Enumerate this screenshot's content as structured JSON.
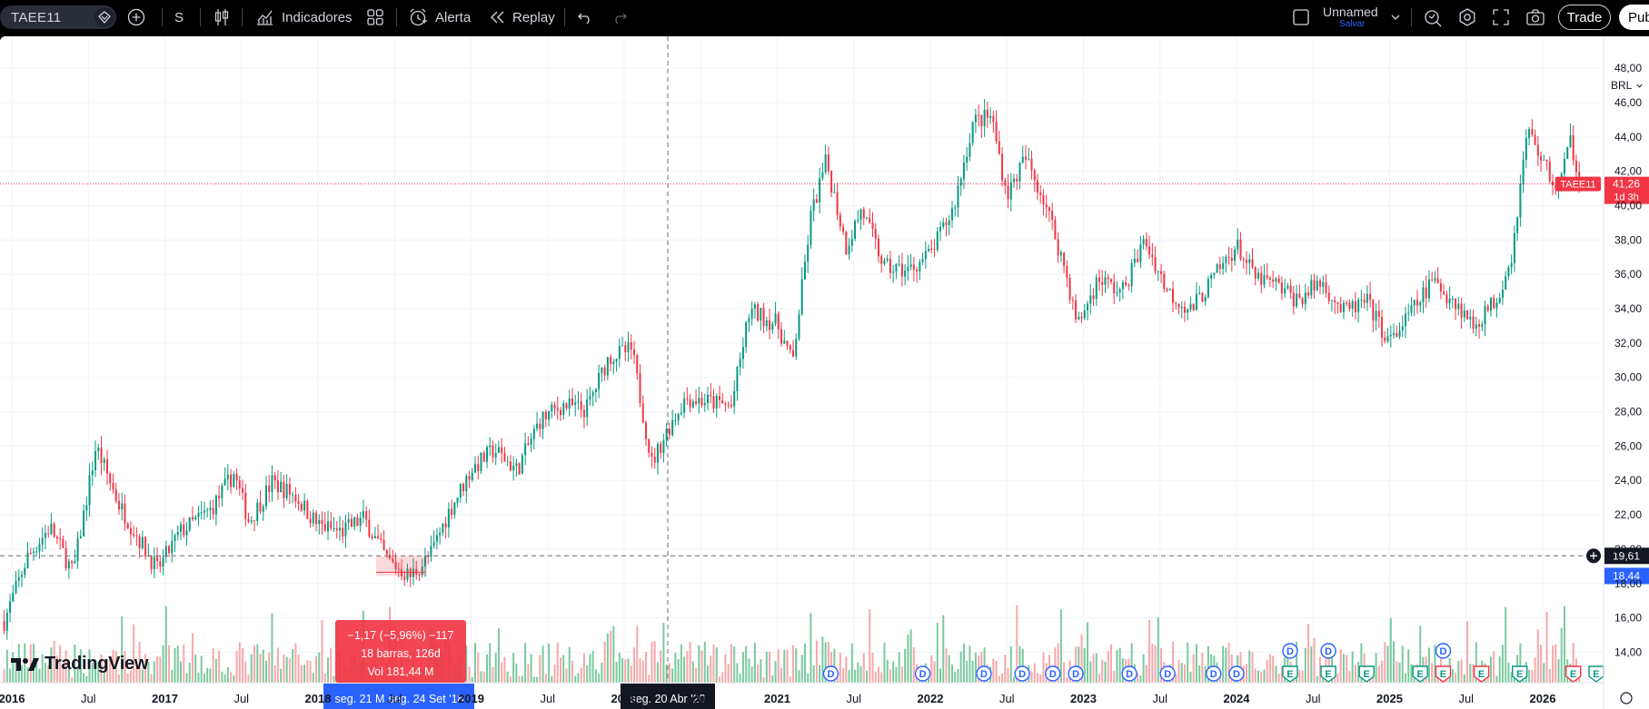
{
  "toolbar": {
    "symbol": "TAEE11",
    "interval": "S",
    "indicators_label": "Indicadores",
    "alert_label": "Alerta",
    "replay_label": "Replay",
    "layout_name": "Unnamed",
    "save_label": "Salvar",
    "trade_label": "Trade",
    "publish_label": "Pub"
  },
  "chart": {
    "currency": "BRL",
    "price_labels": [
      "48,00",
      "46,00",
      "44,00",
      "42,00",
      "40,00",
      "38,00",
      "36,00",
      "34,00",
      "32,00",
      "30,00",
      "28,00",
      "26,00",
      "24,00",
      "22,00",
      "20,00",
      "18,00",
      "16,00",
      "14,00"
    ],
    "time_labels": [
      "2016",
      "Jul",
      "2017",
      "Jul",
      "2018",
      "Jul",
      "2019",
      "Jul",
      "2020",
      "Jul",
      "2021",
      "Jul",
      "2022",
      "Jul",
      "2023",
      "Jul",
      "2024",
      "Jul",
      "2025",
      "Jul",
      "2026"
    ],
    "last_price": {
      "symbol": "TAEE11",
      "value": "41,26",
      "countdown": "1d 3h"
    },
    "crosshair_price": "19,61",
    "measure_price": "18,44",
    "crosshair_date": "seg. 20 Abr '20",
    "range_start_date": "seg. 21 M",
    "range_end_date": "seg. 24 Set '18",
    "measure": {
      "line1": "−1,17 (−5,96%) −117",
      "line2": "18 barras, 126d",
      "line3": "Vol 181,44 M"
    },
    "logo_text": "TradingView",
    "event_markers": [
      {
        "kind": "D",
        "row": "low",
        "date": "2021.35"
      },
      {
        "kind": "D",
        "row": "low",
        "date": "2021.95"
      },
      {
        "kind": "D",
        "row": "low",
        "date": "2022.35"
      },
      {
        "kind": "D",
        "row": "low",
        "date": "2022.6"
      },
      {
        "kind": "D",
        "row": "low",
        "date": "2022.8"
      },
      {
        "kind": "D",
        "row": "low",
        "date": "2022.95"
      },
      {
        "kind": "D",
        "row": "low",
        "date": "2023.3"
      },
      {
        "kind": "D",
        "row": "low",
        "date": "2023.55"
      },
      {
        "kind": "D",
        "row": "low",
        "date": "2023.85"
      },
      {
        "kind": "D",
        "row": "low",
        "date": "2024.0"
      },
      {
        "kind": "D",
        "row": "high",
        "date": "2024.35"
      },
      {
        "kind": "D",
        "row": "high",
        "date": "2024.6"
      },
      {
        "kind": "D",
        "row": "high",
        "date": "2025.35"
      },
      {
        "kind": "E",
        "row": "low",
        "date": "2024.35"
      },
      {
        "kind": "E",
        "row": "low",
        "date": "2024.6"
      },
      {
        "kind": "E",
        "row": "low",
        "date": "2024.85"
      },
      {
        "kind": "E",
        "row": "low",
        "date": "2025.2"
      },
      {
        "kind": "E",
        "row": "low",
        "date": "2025.35"
      },
      {
        "kind": "E",
        "row": "low",
        "date": "2025.6"
      },
      {
        "kind": "E",
        "row": "low",
        "date": "2025.85"
      },
      {
        "kind": "E",
        "row": "low",
        "date": "2026.2"
      },
      {
        "kind": "E",
        "row": "low",
        "date": "2026.35"
      }
    ],
    "colors": {
      "up": "#089981",
      "down": "#f23645",
      "vol_up": "#7cc9a0",
      "vol_down": "#f7a9a9",
      "crosshair": "#131722",
      "accent": "#2962ff"
    }
  }
}
